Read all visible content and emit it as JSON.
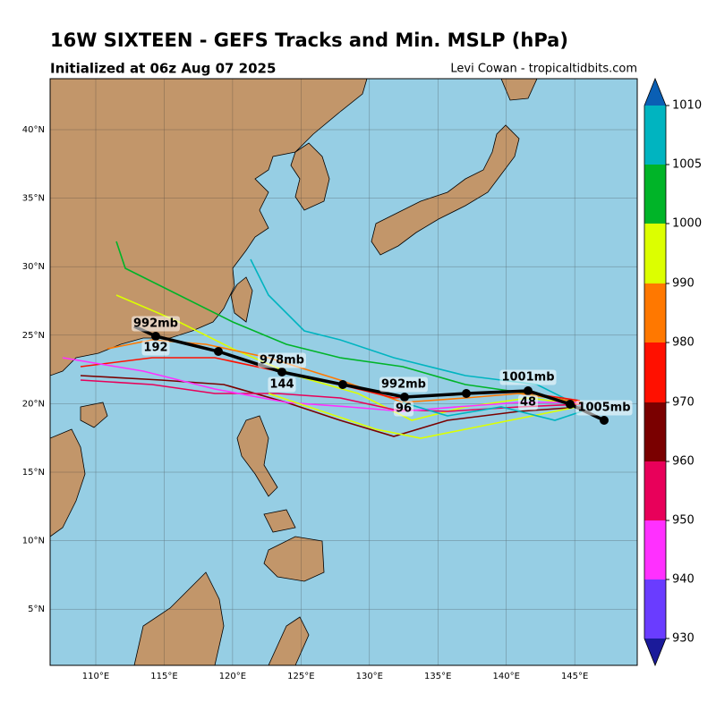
{
  "header": {
    "title": "16W SIXTEEN - GEFS Tracks and Min. MSLP (hPa)",
    "subtitle": "Initialized at 06z Aug 07 2025",
    "credit": "Levi Cowan - tropicaltidbits.com"
  },
  "map": {
    "lat_labels": [
      "40°N",
      "35°N",
      "30°N",
      "25°N",
      "20°N",
      "15°N",
      "10°N",
      "5°N"
    ],
    "lon_labels": [
      "110°E",
      "115°E",
      "120°E",
      "125°E",
      "130°E",
      "135°E",
      "140°E",
      "145°E"
    ]
  },
  "mean_track": {
    "pressure_labels": [
      "1005mb",
      "1001mb",
      "992mb",
      "978mb",
      "992mb"
    ],
    "hour_labels": [
      "48",
      "96",
      "144",
      "192"
    ]
  },
  "colorbar": {
    "labels": [
      "930",
      "940",
      "950",
      "960",
      "970",
      "980",
      "990",
      "1000",
      "1005",
      "1010"
    ]
  }
}
